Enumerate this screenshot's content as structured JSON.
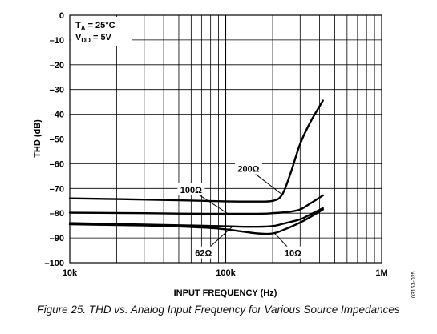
{
  "caption": "Figure 25. THD vs. Analog Input Frequency for Various Source Impedances",
  "figure_code": "03153-025",
  "chart_data": {
    "type": "line",
    "title": "",
    "xlabel": "INPUT FREQUENCY (Hz)",
    "ylabel": "THD (dB)",
    "x_scale": "log",
    "xlim": [
      10000,
      1000000
    ],
    "ylim": [
      -100,
      0
    ],
    "grid": true,
    "x_ticks": [
      {
        "value": 10000,
        "label": "10k"
      },
      {
        "value": 100000,
        "label": "100k"
      },
      {
        "value": 1000000,
        "label": "1M"
      }
    ],
    "y_ticks": [
      {
        "value": 0,
        "label": "0"
      },
      {
        "value": -10,
        "label": "–10"
      },
      {
        "value": -20,
        "label": "–20"
      },
      {
        "value": -30,
        "label": "–30"
      },
      {
        "value": -40,
        "label": "–40"
      },
      {
        "value": -50,
        "label": "–50"
      },
      {
        "value": -60,
        "label": "–60"
      },
      {
        "value": -70,
        "label": "–70"
      },
      {
        "value": -80,
        "label": "–80"
      },
      {
        "value": -90,
        "label": "–90"
      },
      {
        "value": -100,
        "label": "–100"
      }
    ],
    "conditions": {
      "ta_main": "T",
      "ta_sub": "A",
      "ta_rest": " = 25°C",
      "vdd_main": "V",
      "vdd_sub": "DD",
      "vdd_rest": " = 5V"
    },
    "series": [
      {
        "name": "200Ω",
        "color": "#000000",
        "points": [
          [
            10000,
            -74
          ],
          [
            20000,
            -74.3
          ],
          [
            50000,
            -74.8
          ],
          [
            100000,
            -75.2
          ],
          [
            150000,
            -75.3
          ],
          [
            200000,
            -75
          ],
          [
            230000,
            -72.5
          ],
          [
            260000,
            -64
          ],
          [
            300000,
            -52
          ],
          [
            350000,
            -43
          ],
          [
            420000,
            -34.5
          ]
        ]
      },
      {
        "name": "100Ω",
        "color": "#000000",
        "points": [
          [
            10000,
            -79.8
          ],
          [
            30000,
            -80
          ],
          [
            70000,
            -80.3
          ],
          [
            100000,
            -80.5
          ],
          [
            150000,
            -80.4
          ],
          [
            200000,
            -80
          ],
          [
            250000,
            -79.5
          ],
          [
            300000,
            -78.5
          ],
          [
            350000,
            -76
          ],
          [
            420000,
            -72.8
          ]
        ]
      },
      {
        "name": "62Ω",
        "color": "#000000",
        "points": [
          [
            10000,
            -84
          ],
          [
            30000,
            -84.6
          ],
          [
            60000,
            -85
          ],
          [
            100000,
            -85.3
          ],
          [
            150000,
            -85.5
          ],
          [
            200000,
            -85.2
          ],
          [
            250000,
            -83.8
          ],
          [
            300000,
            -82.5
          ],
          [
            350000,
            -80.5
          ],
          [
            420000,
            -78
          ]
        ]
      },
      {
        "name": "10Ω",
        "color": "#000000",
        "points": [
          [
            10000,
            -84.5
          ],
          [
            30000,
            -85
          ],
          [
            60000,
            -85.6
          ],
          [
            90000,
            -86.2
          ],
          [
            120000,
            -87.2
          ],
          [
            160000,
            -88.2
          ],
          [
            200000,
            -88.2
          ],
          [
            240000,
            -86.5
          ],
          [
            300000,
            -83.8
          ],
          [
            350000,
            -81.5
          ],
          [
            420000,
            -78.5
          ]
        ]
      }
    ],
    "annotations": [
      {
        "label": "200Ω",
        "x": 140000,
        "y": -62,
        "target": [
          225000,
          -72
        ]
      },
      {
        "label": "100Ω",
        "x": 60000,
        "y": -70.5,
        "target": [
          105000,
          -80.5
        ]
      },
      {
        "label": "62Ω",
        "x": 72000,
        "y": -96,
        "target": [
          110000,
          -85.5
        ]
      },
      {
        "label": "10Ω",
        "x": 270000,
        "y": -96,
        "target": [
          205000,
          -88
        ]
      }
    ]
  }
}
